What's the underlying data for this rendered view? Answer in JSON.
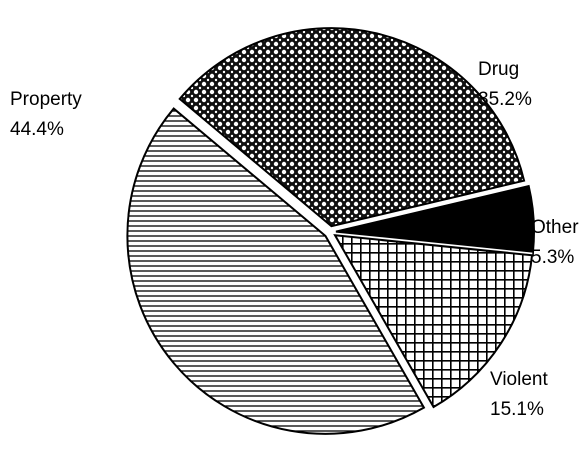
{
  "chart_data": {
    "type": "pie",
    "categories": [
      "Drug",
      "Other",
      "Violent",
      "Property"
    ],
    "values": [
      35.2,
      5.3,
      15.1,
      44.4
    ],
    "value_labels": [
      "35.2%",
      "5.3%",
      "15.1%",
      "44.4%"
    ]
  }
}
